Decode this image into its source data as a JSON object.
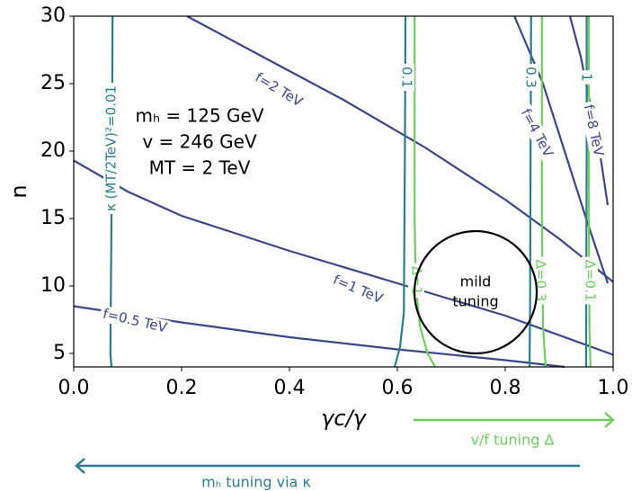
{
  "chart_data": {
    "type": "contour",
    "xlabel": "γc/γ",
    "ylabel": "n",
    "xlim": [
      0,
      1
    ],
    "ylim": [
      4,
      30
    ],
    "xticks": [
      {
        "value": 0,
        "label": "0.0"
      },
      {
        "value": 0.2,
        "label": "0.2"
      },
      {
        "value": 0.4,
        "label": "0.4"
      },
      {
        "value": 0.6,
        "label": "0.6"
      },
      {
        "value": 0.8,
        "label": "0.8"
      },
      {
        "value": 1,
        "label": "1.0"
      }
    ],
    "yticks": [
      5,
      10,
      15,
      20,
      25,
      30
    ],
    "series": [
      {
        "name": "f=0.5 TeV",
        "color": "#3b4687",
        "x": [
          0,
          0.2,
          0.4,
          0.6,
          0.8,
          0.91
        ],
        "y": [
          8.5,
          7.3,
          6.2,
          5.3,
          4.5,
          4
        ]
      },
      {
        "name": "f=1 TeV",
        "color": "#3b4687",
        "x": [
          0,
          0.1,
          0.2,
          0.4,
          0.6,
          0.8,
          1.0
        ],
        "y": [
          19.3,
          17,
          15.2,
          12.6,
          10.2,
          7.8,
          4.9
        ]
      },
      {
        "name": "f=2 TeV",
        "color": "#3b4687",
        "x": [
          0.21,
          0.35,
          0.5,
          0.65,
          0.8,
          0.9,
          1.0
        ],
        "y": [
          30,
          27,
          23.8,
          20.3,
          16.4,
          13.5,
          10.3
        ]
      },
      {
        "name": "f=4 TeV",
        "color": "#3b4687",
        "x": [
          0.817,
          0.87,
          0.91,
          0.95,
          0.99
        ],
        "y": [
          30,
          25,
          20,
          15,
          10.2
        ]
      },
      {
        "name": "f=8 TeV",
        "color": "#3b4687",
        "x": [
          0.92,
          0.94,
          0.955,
          0.975,
          0.99
        ],
        "y": [
          30,
          27,
          24,
          20,
          16
        ]
      },
      {
        "name": "κ (MT/2TeV)²=0.01",
        "color": "#2a7d8c",
        "x": [
          0.072,
          0.071,
          0.069,
          0.068,
          0.07
        ],
        "y": [
          30,
          20,
          10,
          5,
          4
        ]
      },
      {
        "name": "0.1",
        "color": "#2a7d8c",
        "x": [
          0.615,
          0.614,
          0.612,
          0.605,
          0.595
        ],
        "y": [
          30,
          20,
          8,
          5.5,
          4
        ]
      },
      {
        "name": "0.3",
        "color": "#2a7d8c",
        "x": [
          0.848,
          0.847,
          0.846,
          0.845
        ],
        "y": [
          30,
          20,
          8,
          4
        ]
      },
      {
        "name": "1",
        "color": "#2a7d8c",
        "x": [
          0.951,
          0.951,
          0.95,
          0.95
        ],
        "y": [
          30,
          20,
          8,
          4
        ]
      },
      {
        "name": "Δ=1",
        "color": "#6dcf5b",
        "x": [
          0.632,
          0.632,
          0.634,
          0.642,
          0.656,
          0.67
        ],
        "y": [
          30,
          15,
          10,
          7,
          5,
          4
        ]
      },
      {
        "name": "Δ=0.3",
        "color": "#6dcf5b",
        "x": [
          0.868,
          0.868,
          0.87,
          0.875
        ],
        "y": [
          30,
          15,
          7,
          4
        ]
      },
      {
        "name": "Δ=0.1",
        "color": "#6dcf5b",
        "x": [
          0.955,
          0.955,
          0.956,
          0.958
        ],
        "y": [
          30,
          15,
          7,
          4
        ]
      }
    ],
    "annotations": [
      "mₕ = 125 GeV",
      "v = 246 GeV",
      "MT = 2 TeV"
    ],
    "circle_label": [
      "mild",
      "tuning"
    ],
    "arrows": [
      {
        "label": "v/f tuning Δ",
        "color": "#6dcf5b"
      },
      {
        "label": "mₕ tuning via κ",
        "color": "#2a7d8c"
      }
    ]
  }
}
